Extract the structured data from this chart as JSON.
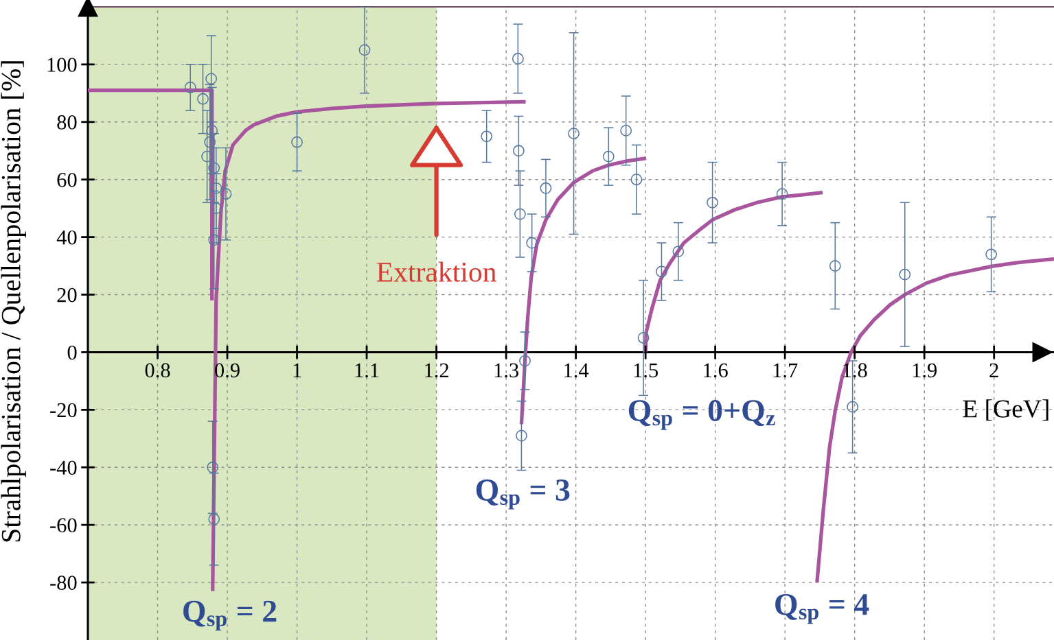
{
  "chart_data": {
    "type": "line",
    "xlabel": "E [GeV]",
    "ylabel": "Strahlpolarisation / Quellenpolarisation [%]",
    "xlim": [
      0.7,
      2.086
    ],
    "ylim": [
      -100,
      120
    ],
    "xticks": [
      0.8,
      0.9,
      1,
      1.1,
      1.2,
      1.3,
      1.4,
      1.5,
      1.6,
      1.7,
      1.8,
      1.9,
      2
    ],
    "yticks": [
      -80,
      -60,
      -40,
      -20,
      0,
      20,
      40,
      60,
      80,
      100
    ],
    "grid": true,
    "bands": [
      {
        "axis": "x",
        "from": 0.7,
        "to": 1.2,
        "color": "#d9e8c0"
      }
    ],
    "annotations": [
      "Extraktion"
    ],
    "series": [
      {
        "type": "scatter",
        "color": "#56789f",
        "marker": "circle",
        "x": [
          0.847,
          0.865,
          0.877,
          0.878,
          0.875,
          0.871,
          0.881,
          0.884,
          0.884,
          0.881,
          0.898,
          0.879,
          0.881,
          1.0,
          1.097,
          1.272,
          1.317,
          1.318,
          1.32,
          1.337,
          1.357,
          1.397,
          1.447,
          1.472,
          1.487,
          1.322,
          1.327,
          1.497,
          1.523,
          1.547,
          1.596,
          1.696,
          1.772,
          1.797,
          1.872,
          1.996
        ],
        "values": [
          92,
          88,
          95,
          77,
          73,
          68,
          64,
          57,
          50,
          39,
          55,
          -40,
          -58,
          73,
          105,
          75,
          102,
          70,
          48,
          38,
          57,
          76,
          68,
          77,
          60,
          -29,
          -3,
          5,
          28,
          35,
          52,
          55,
          30,
          -19,
          27,
          34
        ],
        "errors": [
          8,
          12,
          15,
          15,
          20,
          16,
          12,
          14,
          12,
          17,
          16,
          16,
          16,
          10,
          15,
          9,
          12,
          12,
          15,
          10,
          10,
          35,
          10,
          12,
          12,
          12,
          10,
          20,
          10,
          10,
          14,
          11,
          15,
          16,
          25,
          13
        ]
      },
      {
        "color": "#a8559e",
        "x": [
          0.7,
          0.878,
          0.878
        ],
        "values": [
          91,
          91,
          18
        ]
      },
      {
        "name": "Q$_{sp}$ = 2",
        "color": "#a8559e",
        "x": [
          0.879,
          0.884,
          0.887,
          0.891,
          0.897,
          0.908,
          0.926,
          0.938,
          0.97,
          1.0,
          1.05,
          1.1,
          1.2,
          1.328
        ],
        "values": [
          -83,
          18,
          32,
          49,
          63,
          72,
          77,
          79,
          82,
          83.5,
          84.7,
          85.5,
          86.4,
          87
        ]
      },
      {
        "name": "Q$_{sp}$ = 3",
        "color": "#a8559e",
        "x": [
          1.322,
          1.327,
          1.331,
          1.336,
          1.344,
          1.357,
          1.374,
          1.397,
          1.424,
          1.447,
          1.473,
          1.501
        ],
        "values": [
          -25,
          -3,
          12,
          26,
          37.5,
          46,
          53,
          59,
          63,
          65,
          66.4,
          67.4
        ]
      },
      {
        "name": "Q$_{sp}$ = 0+Q$_{z}$",
        "color": "#a8559e",
        "x": [
          1.5,
          1.501,
          1.509,
          1.521,
          1.535,
          1.555,
          1.575,
          1.596,
          1.628,
          1.66,
          1.696,
          1.726,
          1.754
        ],
        "values": [
          0,
          7,
          15,
          25,
          31,
          38,
          42,
          46,
          49.5,
          52,
          54,
          54.7,
          55.5
        ]
      },
      {
        "name": "Q$_{sp}$ = 4",
        "color": "#a8559e",
        "x": [
          1.746,
          1.755,
          1.764,
          1.772,
          1.782,
          1.795,
          1.808,
          1.828,
          1.851,
          1.872,
          1.903,
          1.936,
          1.996,
          2.035,
          2.086
        ],
        "values": [
          -80,
          -55,
          -33,
          -20.5,
          -8.6,
          0,
          5.7,
          11.3,
          16.5,
          20,
          24,
          26.8,
          29.8,
          31.2,
          32.4
        ]
      }
    ]
  }
}
